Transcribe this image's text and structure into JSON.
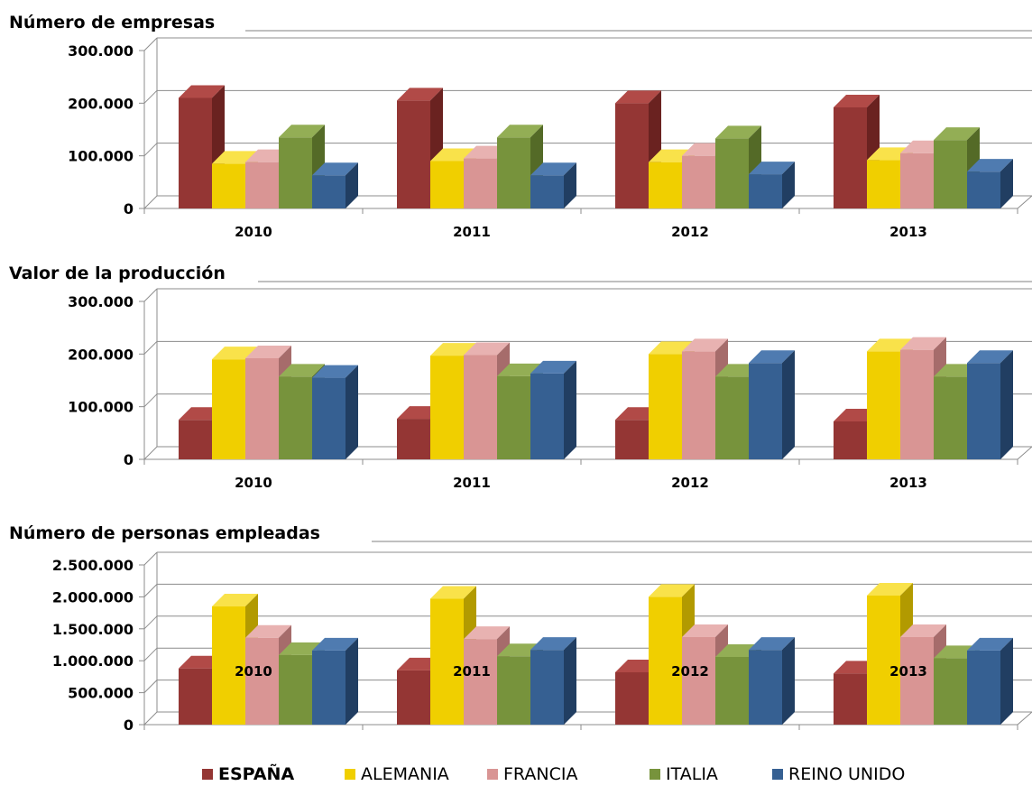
{
  "colors": {
    "espana": [
      "#943634",
      "#b14a47",
      "#6a2220"
    ],
    "alemania": [
      "#f0cf00",
      "#f9e24a",
      "#b29a00"
    ],
    "francia": [
      "#d99594",
      "#e8b2b1",
      "#a66c6b"
    ],
    "italia": [
      "#77933c",
      "#93ae55",
      "#546a27"
    ],
    "reino_unido": [
      "#366092",
      "#4f7bb0",
      "#213e62"
    ]
  },
  "legend": [
    {
      "key": "espana",
      "label": "ESPAÑA"
    },
    {
      "key": "alemania",
      "label": "ALEMANIA"
    },
    {
      "key": "francia",
      "label": "FRANCIA"
    },
    {
      "key": "italia",
      "label": "ITALIA"
    },
    {
      "key": "reino_unido",
      "label": "REINO UNIDO"
    }
  ],
  "chart_data": [
    {
      "type": "bar",
      "title": "Número de empresas",
      "categories": [
        "2010",
        "2011",
        "2012",
        "2013"
      ],
      "yticks": [
        "0",
        "100.000",
        "200.000",
        "300.000"
      ],
      "ylim": [
        0,
        300000
      ],
      "series": [
        {
          "name": "ESPAÑA",
          "key": "espana",
          "values": [
            210000,
            205000,
            200000,
            192000
          ]
        },
        {
          "name": "ALEMANIA",
          "key": "alemania",
          "values": [
            85000,
            90000,
            88000,
            92000
          ]
        },
        {
          "name": "FRANCIA",
          "key": "francia",
          "values": [
            88000,
            95000,
            100000,
            105000
          ]
        },
        {
          "name": "ITALIA",
          "key": "italia",
          "values": [
            135000,
            135000,
            133000,
            130000
          ]
        },
        {
          "name": "REINO UNIDO",
          "key": "reino_unido",
          "values": [
            63000,
            63000,
            65000,
            70000
          ]
        }
      ]
    },
    {
      "type": "bar",
      "title": "Valor de la producción",
      "categories": [
        "2010",
        "2011",
        "2012",
        "2013"
      ],
      "yticks": [
        "0",
        "100.000",
        "200.000",
        "300.000"
      ],
      "ylim": [
        0,
        300000
      ],
      "series": [
        {
          "name": "ESPAÑA",
          "key": "espana",
          "values": [
            75000,
            77000,
            75000,
            72000
          ]
        },
        {
          "name": "ALEMANIA",
          "key": "alemania",
          "values": [
            190000,
            197000,
            200000,
            205000
          ]
        },
        {
          "name": "FRANCIA",
          "key": "francia",
          "values": [
            192000,
            198000,
            205000,
            208000
          ]
        },
        {
          "name": "ITALIA",
          "key": "italia",
          "values": [
            157000,
            158000,
            157000,
            157000
          ]
        },
        {
          "name": "REINO UNIDO",
          "key": "reino_unido",
          "values": [
            155000,
            163000,
            183000,
            183000
          ]
        }
      ]
    },
    {
      "type": "bar",
      "title": "Número de personas empleadas",
      "categories": [
        "2010",
        "2011",
        "2012",
        "2013"
      ],
      "yticks": [
        "0",
        "500.000",
        "1.000.000",
        "1.500.000",
        "2.000.000",
        "2.500.000"
      ],
      "ylim": [
        0,
        2500000
      ],
      "series": [
        {
          "name": "ESPAÑA",
          "key": "espana",
          "values": [
            880000,
            850000,
            820000,
            800000
          ]
        },
        {
          "name": "ALEMANIA",
          "key": "alemania",
          "values": [
            1850000,
            1970000,
            2000000,
            2020000
          ]
        },
        {
          "name": "FRANCIA",
          "key": "francia",
          "values": [
            1360000,
            1340000,
            1370000,
            1370000
          ]
        },
        {
          "name": "ITALIA",
          "key": "italia",
          "values": [
            1090000,
            1070000,
            1060000,
            1040000
          ]
        },
        {
          "name": "REINO UNIDO",
          "key": "reino_unido",
          "values": [
            1160000,
            1170000,
            1170000,
            1160000
          ]
        }
      ]
    }
  ]
}
